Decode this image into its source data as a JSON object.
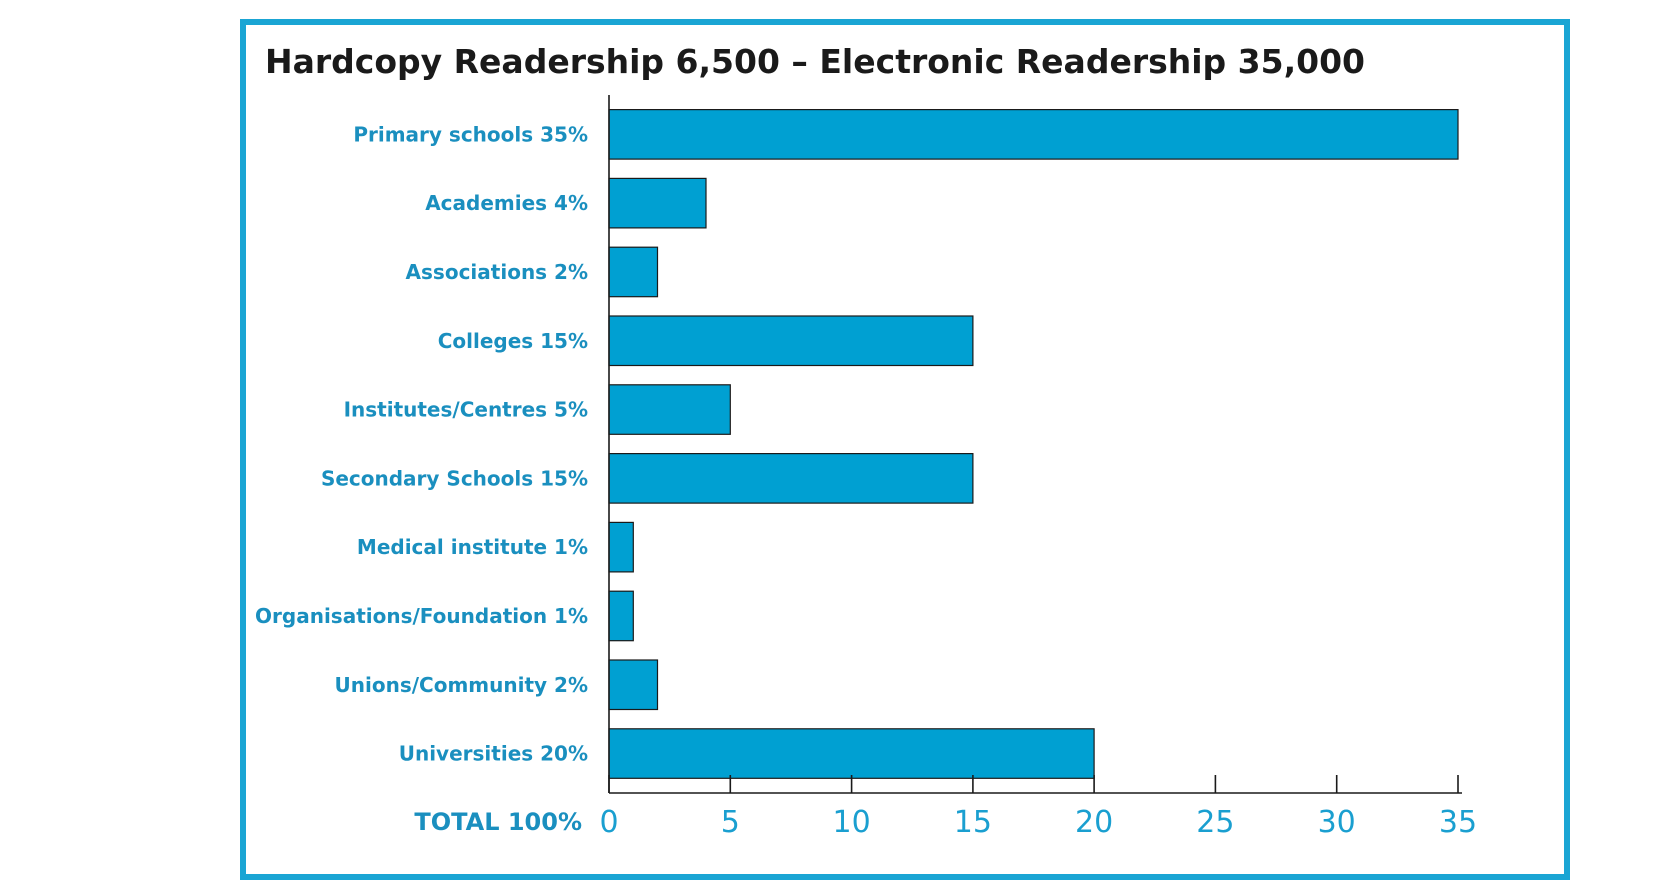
{
  "chart_data": {
    "type": "bar",
    "orientation": "horizontal",
    "title": "Hardcopy Readership 6,500 – Electronic Readership 35,000",
    "categories": [
      "Primary schools 35%",
      "Academies 4%",
      "Associations 2%",
      "Colleges  15%",
      "Institutes/Centres 5%",
      "Secondary Schools 15%",
      "Medical institute  1%",
      "Organisations/Foundation 1%",
      "Unions/Community  2%",
      "Universities 20%"
    ],
    "values": [
      35,
      4,
      2,
      15,
      5,
      15,
      1,
      1,
      2,
      20
    ],
    "xlim": [
      0,
      35
    ],
    "xticks": [
      0,
      5,
      10,
      15,
      20,
      25,
      30,
      35
    ],
    "xtick_labels": [
      "0",
      "5",
      "10",
      "15",
      "20",
      "25",
      "30",
      "35"
    ],
    "total_label": "TOTAL 100%",
    "grid": false,
    "legend": "none",
    "bar_color": "#00a0d2",
    "label_color": "#1a8fbf",
    "frame_color": "#1aa5d4"
  }
}
